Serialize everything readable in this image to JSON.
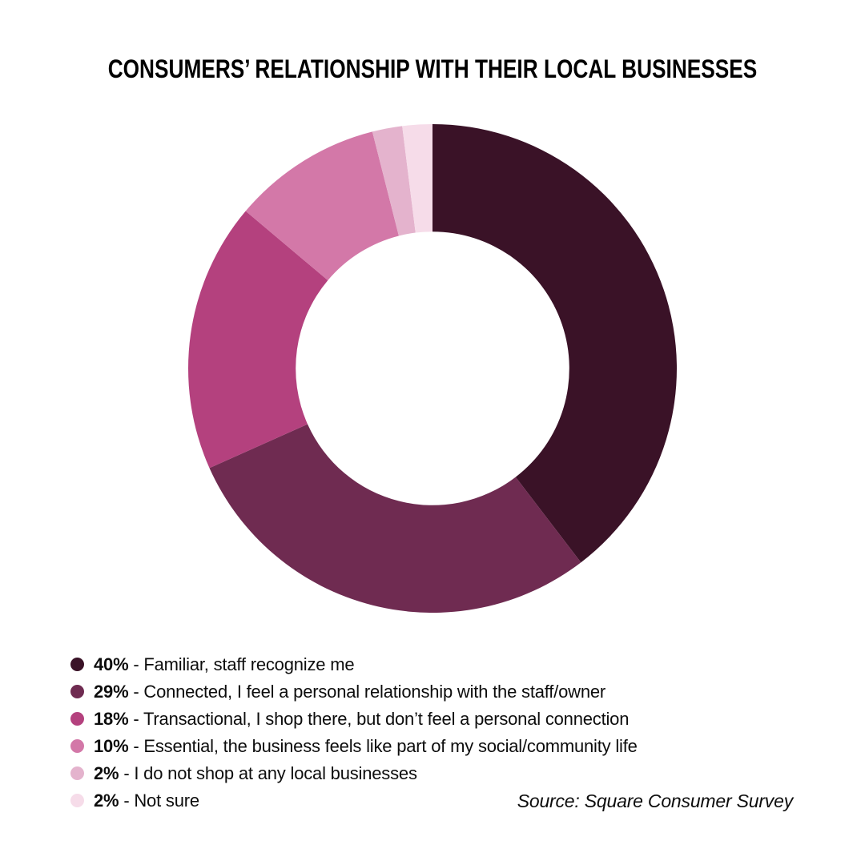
{
  "page": {
    "background": "#ffffff"
  },
  "title": "CONSUMERS’ RELATIONSHIP WITH THEIR LOCAL BUSINESSES",
  "source": "Source: Square Consumer Survey",
  "chart_data": {
    "type": "pie",
    "variant": "donut",
    "title": "CONSUMERS’ RELATIONSHIP WITH THEIR LOCAL BUSINESSES",
    "start_at": "12-oclock",
    "direction": "clockwise",
    "inner_radius_ratio": 0.56,
    "legend_position": "bottom-left",
    "separator": " - ",
    "segments": [
      {
        "value": 40,
        "unit": "%",
        "label": "Familiar, staff recognize me",
        "color": "#3A1227"
      },
      {
        "value": 29,
        "unit": "%",
        "label": "Connected, I feel a personal relationship with the staff/owner",
        "color": "#6F2B51"
      },
      {
        "value": 18,
        "unit": "%",
        "label": "Transactional, I shop there, but don’t feel a personal connection",
        "color": "#B4417E"
      },
      {
        "value": 10,
        "unit": "%",
        "label": "Essential, the business feels like part of my social/community life",
        "color": "#D378A8"
      },
      {
        "value": 2,
        "unit": "%",
        "label": "I do not shop at any local businesses",
        "color": "#E4B3CD"
      },
      {
        "value": 2,
        "unit": "%",
        "label": "Not sure",
        "color": "#F6DCE9"
      }
    ]
  }
}
